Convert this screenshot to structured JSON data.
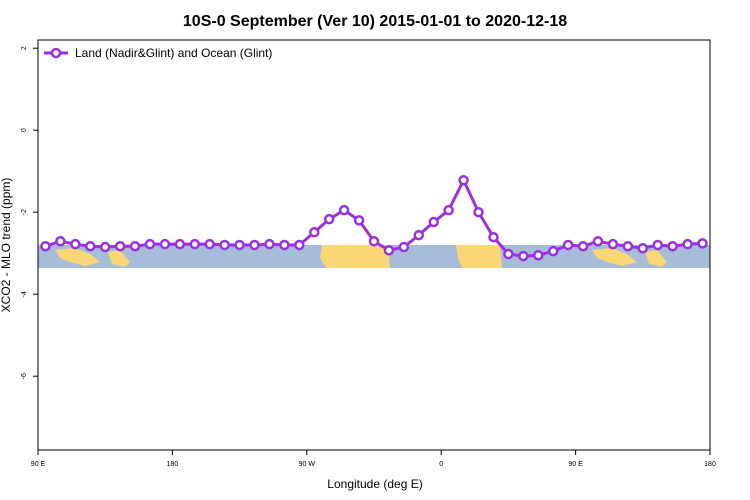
{
  "chart_data": {
    "type": "line",
    "title": "10S-0 September (Ver 10)   2015-01-01 to 2020-12-18",
    "x_label": "Longitude (deg E)",
    "y_label": "XCO2 - MLO trend (ppm)",
    "x": [
      95,
      105,
      115,
      125,
      135,
      145,
      155,
      165,
      175,
      185,
      195,
      205,
      215,
      225,
      235,
      245,
      255,
      265,
      275,
      285,
      295,
      305,
      315,
      325,
      335,
      345,
      355,
      365,
      375,
      385,
      395,
      405,
      415,
      425,
      435,
      445,
      455,
      465,
      475,
      485,
      495,
      505,
      515,
      525,
      535
    ],
    "series": [
      {
        "name": "Land (Nadir&Glint) and Ocean (Glint)",
        "color": "#9b30e0",
        "values": [
          -2.83,
          -2.71,
          -2.78,
          -2.83,
          -2.85,
          -2.83,
          -2.83,
          -2.78,
          -2.78,
          -2.78,
          -2.78,
          -2.78,
          -2.8,
          -2.8,
          -2.8,
          -2.78,
          -2.8,
          -2.8,
          -2.49,
          -2.17,
          -1.95,
          -2.2,
          -2.71,
          -2.93,
          -2.85,
          -2.56,
          -2.24,
          -1.95,
          -1.22,
          -2.0,
          -2.61,
          -3.02,
          -3.07,
          -3.05,
          -2.95,
          -2.8,
          -2.83,
          -2.71,
          -2.78,
          -2.83,
          -2.88,
          -2.8,
          -2.83,
          -2.78,
          -2.76
        ]
      }
    ],
    "xlim": [
      90,
      540
    ],
    "xticks": [
      {
        "value": 90,
        "label": "90 E"
      },
      180,
      {
        "value": 270,
        "label": "90 W"
      },
      {
        "value": 360,
        "label": "0"
      },
      {
        "value": 450,
        "label": "90 E"
      },
      {
        "value": 540,
        "label": "180"
      }
    ],
    "ylim": [
      -7.8,
      2.2
    ],
    "yticks": [
      2,
      0,
      -2,
      -4,
      -6
    ],
    "legend": "top-left"
  }
}
